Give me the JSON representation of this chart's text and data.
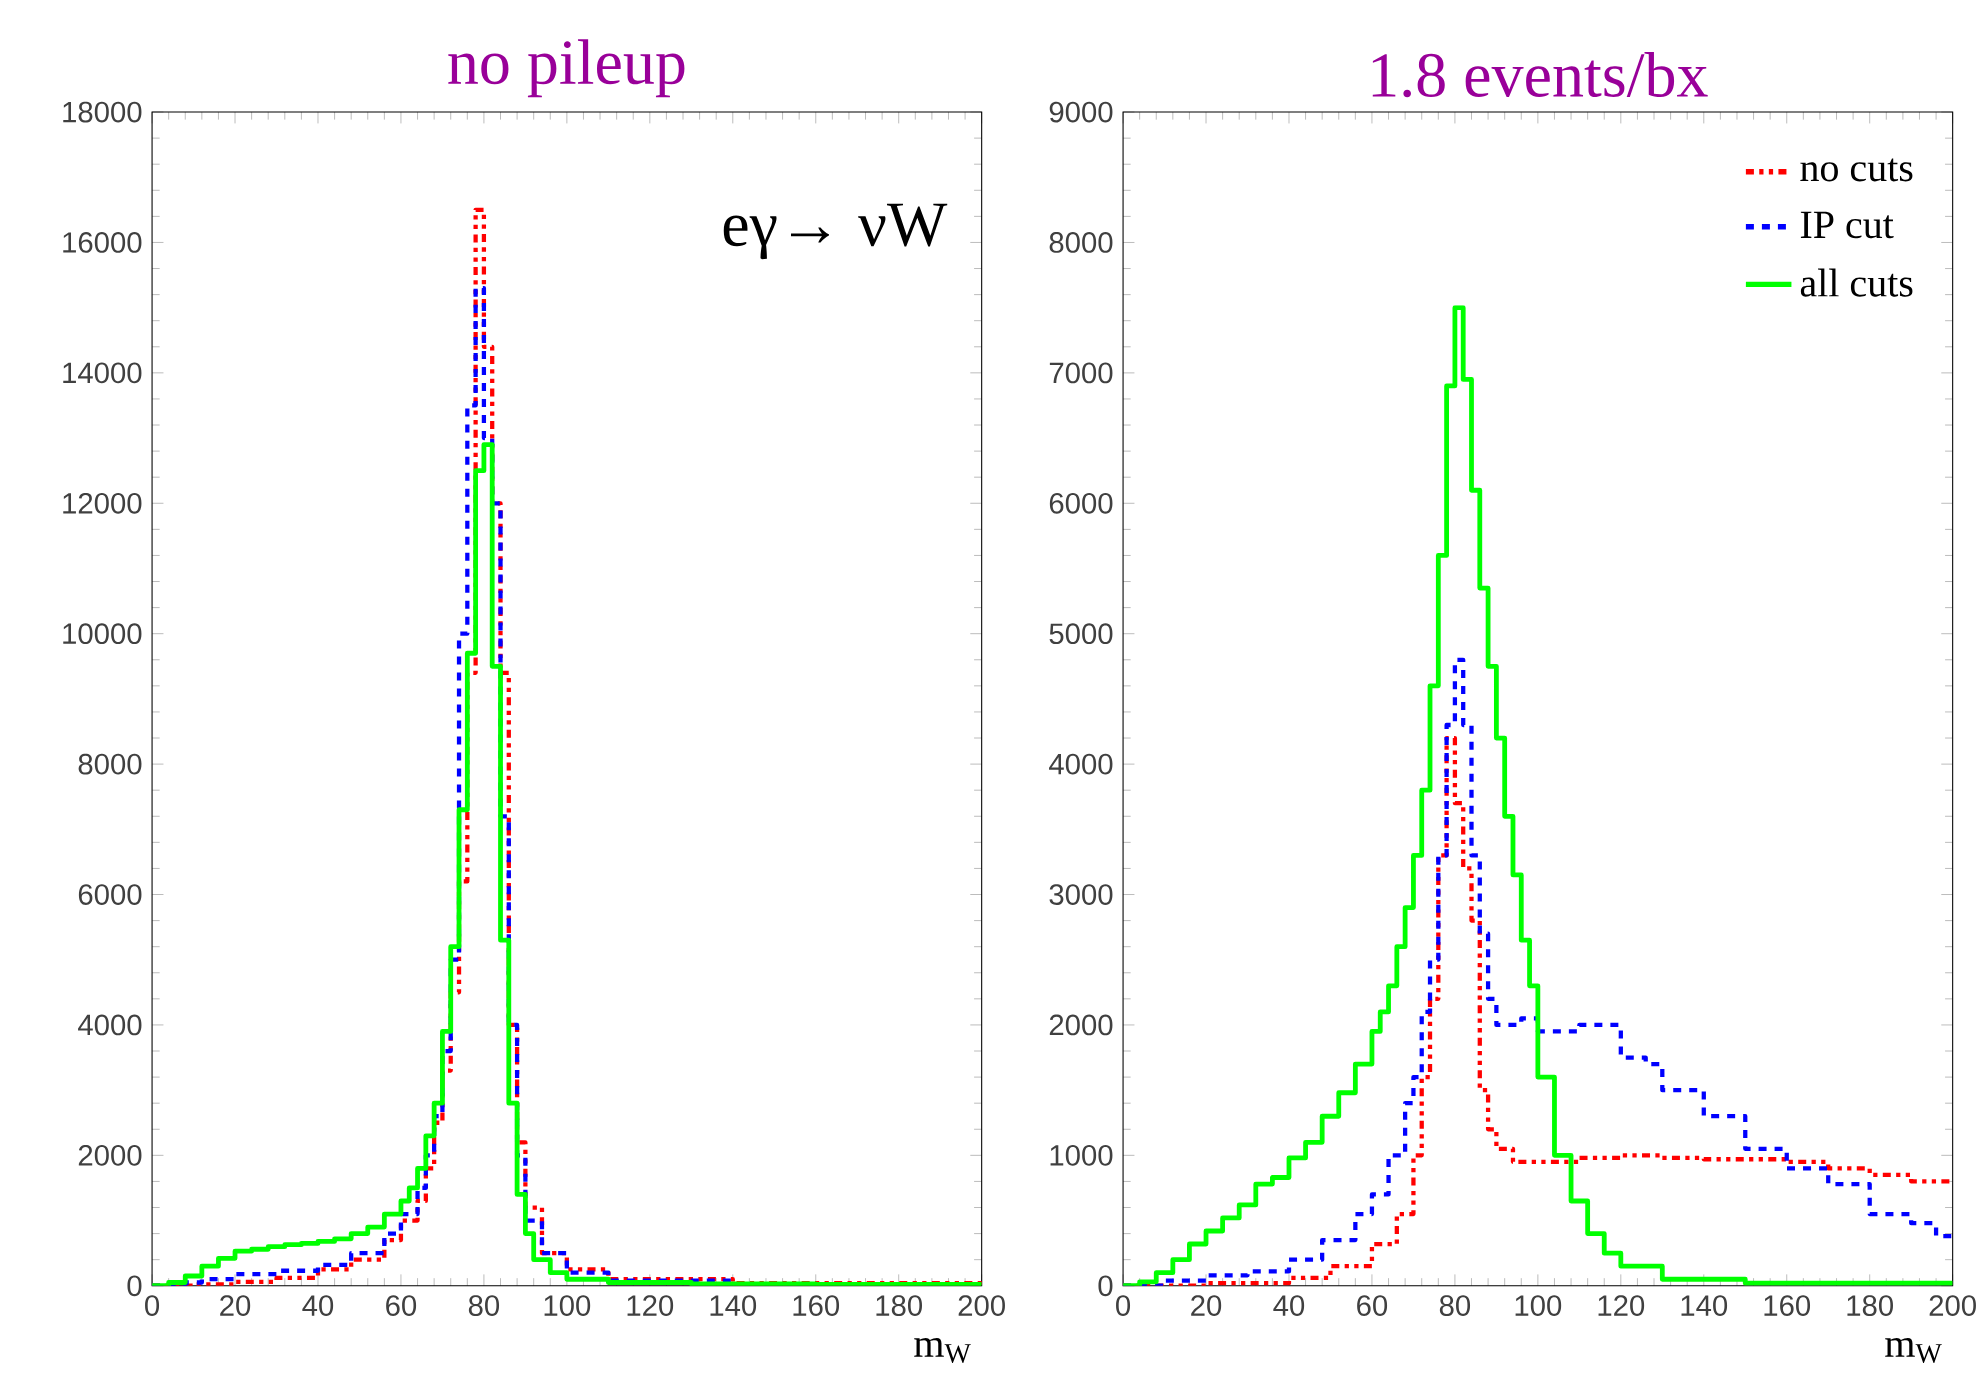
{
  "chart_data": [
    {
      "type": "step",
      "title": "no pileup",
      "xlabel": "m$_{W}$",
      "annotations": [
        "eγ→ νW"
      ],
      "xlim": [
        0,
        200
      ],
      "ylim": [
        0,
        18000
      ],
      "xticks": [
        0,
        20,
        40,
        60,
        80,
        100,
        120,
        140,
        160,
        180,
        200
      ],
      "yticks": [
        0,
        2000,
        4000,
        6000,
        8000,
        10000,
        12000,
        14000,
        16000,
        18000
      ],
      "grid": false,
      "legend": false,
      "marker": "none",
      "series": [
        {
          "color": "#ff0000",
          "line_style": "dotted",
          "x": [
            0,
            10,
            20,
            30,
            40,
            48,
            56,
            60,
            64,
            66,
            68,
            70,
            72,
            74,
            76,
            78,
            80,
            82,
            84,
            86,
            88,
            90,
            94,
            100,
            110,
            140,
            200
          ],
          "values": [
            0,
            20,
            60,
            120,
            250,
            400,
            700,
            1000,
            1300,
            1800,
            2500,
            3300,
            4500,
            6200,
            9400,
            16500,
            14400,
            12000,
            9400,
            4000,
            2200,
            1200,
            500,
            250,
            100,
            40,
            20
          ]
        },
        {
          "color": "#0000ff",
          "line_style": "dashed",
          "x": [
            0,
            8,
            12,
            20,
            30,
            40,
            48,
            56,
            60,
            64,
            66,
            68,
            70,
            72,
            74,
            76,
            78,
            80,
            82,
            84,
            86,
            88,
            90,
            94,
            100,
            110,
            140
          ],
          "values": [
            0,
            50,
            100,
            180,
            230,
            320,
            500,
            800,
            1100,
            1500,
            2000,
            2600,
            3600,
            5000,
            10000,
            13500,
            15300,
            13000,
            12000,
            7200,
            4000,
            2000,
            1000,
            500,
            200,
            80,
            30
          ]
        },
        {
          "color": "#00ff00",
          "line_style": "solid",
          "x": [
            0,
            4,
            8,
            12,
            16,
            20,
            24,
            28,
            32,
            36,
            40,
            44,
            48,
            52,
            56,
            60,
            62,
            64,
            66,
            68,
            70,
            72,
            74,
            76,
            78,
            80,
            82,
            84,
            86,
            88,
            90,
            92,
            96,
            100,
            110,
            130,
            160,
            200
          ],
          "values": [
            0,
            50,
            150,
            300,
            420,
            530,
            560,
            600,
            630,
            650,
            680,
            720,
            800,
            900,
            1100,
            1300,
            1500,
            1800,
            2300,
            2800,
            3900,
            5200,
            7300,
            9700,
            12500,
            12900,
            9500,
            5300,
            2800,
            1400,
            800,
            400,
            200,
            100,
            50,
            30,
            20,
            20
          ]
        }
      ]
    },
    {
      "type": "step",
      "title": "1.8 events/bx",
      "xlabel": "m$_{W}$",
      "xlim": [
        0,
        200
      ],
      "ylim": [
        0,
        9000
      ],
      "xticks": [
        0,
        20,
        40,
        60,
        80,
        100,
        120,
        140,
        160,
        180,
        200
      ],
      "yticks": [
        0,
        1000,
        2000,
        3000,
        4000,
        5000,
        6000,
        7000,
        8000,
        9000
      ],
      "grid": false,
      "legend": "top right",
      "marker": "none",
      "series": [
        {
          "name": "no cuts",
          "color": "#ff0000",
          "line_style": "dotted",
          "x": [
            0,
            20,
            40,
            50,
            60,
            66,
            70,
            72,
            74,
            76,
            78,
            80,
            82,
            84,
            86,
            88,
            90,
            94,
            100,
            110,
            120,
            130,
            140,
            160,
            170,
            180,
            190,
            200
          ],
          "values": [
            0,
            20,
            60,
            150,
            320,
            550,
            1000,
            1600,
            2200,
            3300,
            4200,
            3700,
            3200,
            2800,
            1500,
            1200,
            1050,
            950,
            950,
            980,
            1000,
            980,
            970,
            950,
            900,
            850,
            800,
            800
          ]
        },
        {
          "name": "IP cut",
          "color": "#0000ff",
          "line_style": "dashed",
          "x": [
            0,
            10,
            20,
            30,
            40,
            48,
            56,
            60,
            64,
            68,
            70,
            72,
            74,
            76,
            78,
            80,
            82,
            84,
            86,
            88,
            90,
            96,
            100,
            110,
            116,
            120,
            126,
            130,
            140,
            150,
            160,
            170,
            180,
            190,
            196,
            200
          ],
          "values": [
            0,
            40,
            80,
            110,
            200,
            350,
            550,
            700,
            1000,
            1400,
            1600,
            2100,
            2500,
            3300,
            4300,
            4800,
            4300,
            3300,
            2700,
            2200,
            2000,
            2050,
            1950,
            2000,
            2000,
            1750,
            1700,
            1500,
            1300,
            1050,
            900,
            780,
            550,
            480,
            380,
            380
          ]
        },
        {
          "name": "all cuts",
          "color": "#00ff00",
          "line_style": "solid",
          "x": [
            0,
            4,
            8,
            12,
            16,
            20,
            24,
            28,
            32,
            36,
            40,
            44,
            48,
            52,
            56,
            60,
            62,
            64,
            66,
            68,
            70,
            72,
            74,
            76,
            78,
            80,
            82,
            84,
            86,
            88,
            90,
            92,
            94,
            96,
            98,
            100,
            104,
            108,
            112,
            116,
            120,
            130,
            150,
            200
          ],
          "values": [
            0,
            30,
            100,
            200,
            320,
            420,
            520,
            620,
            780,
            830,
            980,
            1100,
            1300,
            1480,
            1700,
            1950,
            2100,
            2300,
            2600,
            2900,
            3300,
            3800,
            4600,
            5600,
            6900,
            7500,
            6950,
            6100,
            5350,
            4750,
            4200,
            3600,
            3150,
            2650,
            2300,
            1600,
            1000,
            650,
            400,
            250,
            150,
            50,
            20,
            20
          ]
        }
      ]
    }
  ]
}
